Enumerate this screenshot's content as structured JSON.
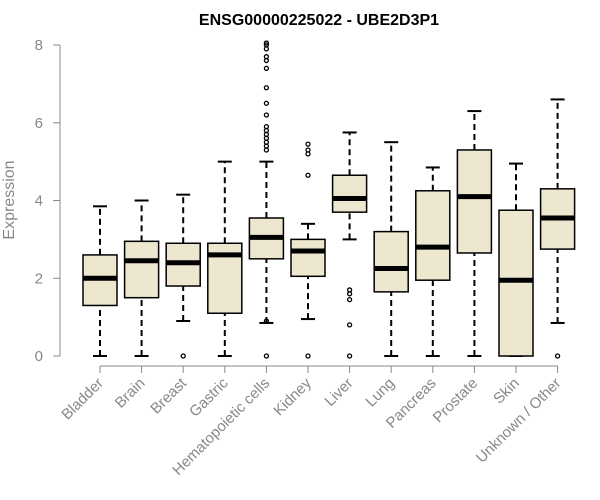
{
  "chart_data": {
    "type": "boxplot",
    "title": "ENSG00000225022 - UBE2D3P1",
    "xlabel": "",
    "ylabel": "Expression",
    "ylim": [
      0,
      8
    ],
    "yticks": [
      0,
      2,
      4,
      6,
      8
    ],
    "grid": false,
    "box_color": "#EDE7CF",
    "categories": [
      "Bladder",
      "Brain",
      "Breast",
      "Gastric",
      "Hematopoietic cells",
      "Kidney",
      "Liver",
      "Lung",
      "Pancreas",
      "Prostate",
      "Skin",
      "Unknown / Other"
    ],
    "boxes": [
      {
        "lower_whisker": 0.0,
        "q1": 1.3,
        "median": 2.0,
        "q3": 2.6,
        "upper_whisker": 3.85,
        "outliers": []
      },
      {
        "lower_whisker": 0.0,
        "q1": 1.5,
        "median": 2.45,
        "q3": 2.95,
        "upper_whisker": 4.0,
        "outliers": []
      },
      {
        "lower_whisker": 0.9,
        "q1": 1.8,
        "median": 2.4,
        "q3": 2.9,
        "upper_whisker": 4.15,
        "outliers": [
          0.0
        ]
      },
      {
        "lower_whisker": 0.0,
        "q1": 1.1,
        "median": 2.6,
        "q3": 2.9,
        "upper_whisker": 5.0,
        "outliers": []
      },
      {
        "lower_whisker": 0.85,
        "q1": 2.5,
        "median": 3.05,
        "q3": 3.55,
        "upper_whisker": 5.0,
        "outliers": [
          0.0,
          0.9,
          5.3,
          5.4,
          5.5,
          5.6,
          5.7,
          5.8,
          5.9,
          6.2,
          6.5,
          6.9,
          7.4,
          7.6,
          7.7,
          7.9,
          8.0,
          8.05
        ]
      },
      {
        "lower_whisker": 0.95,
        "q1": 2.05,
        "median": 2.7,
        "q3": 3.0,
        "upper_whisker": 3.4,
        "outliers": [
          0.0,
          4.65,
          5.2,
          5.3,
          5.45
        ]
      },
      {
        "lower_whisker": 3.0,
        "q1": 3.7,
        "median": 4.05,
        "q3": 4.65,
        "upper_whisker": 5.75,
        "outliers": [
          0.0,
          0.8,
          1.45,
          1.6,
          1.7
        ]
      },
      {
        "lower_whisker": 0.0,
        "q1": 1.65,
        "median": 2.25,
        "q3": 3.2,
        "upper_whisker": 5.5,
        "outliers": []
      },
      {
        "lower_whisker": 0.0,
        "q1": 1.95,
        "median": 2.8,
        "q3": 4.25,
        "upper_whisker": 4.85,
        "outliers": []
      },
      {
        "lower_whisker": 0.0,
        "q1": 2.65,
        "median": 4.1,
        "q3": 5.3,
        "upper_whisker": 6.3,
        "outliers": []
      },
      {
        "lower_whisker": 0.0,
        "q1": 0.0,
        "median": 1.95,
        "q3": 3.75,
        "upper_whisker": 4.95,
        "outliers": []
      },
      {
        "lower_whisker": 0.85,
        "q1": 2.75,
        "median": 3.55,
        "q3": 4.3,
        "upper_whisker": 6.6,
        "outliers": [
          0.0
        ]
      }
    ]
  }
}
